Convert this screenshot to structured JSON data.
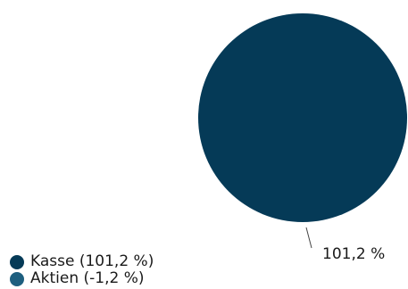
{
  "chart_data": {
    "type": "pie",
    "title": "",
    "categories": [
      "Kasse",
      "Aktien"
    ],
    "values": [
      101.2,
      -1.2
    ],
    "unit": "%",
    "slices": [
      {
        "name": "Kasse",
        "value": 101.2,
        "color": "#053a57"
      },
      {
        "name": "Aktien",
        "value": -1.2,
        "color": "#1e5f7f"
      }
    ],
    "data_labels": [
      "101,2 %"
    ],
    "legend": {
      "position": "bottom-left",
      "items": [
        "Kasse (101,2 %)",
        "Aktien (-1,2 %)"
      ]
    }
  }
}
